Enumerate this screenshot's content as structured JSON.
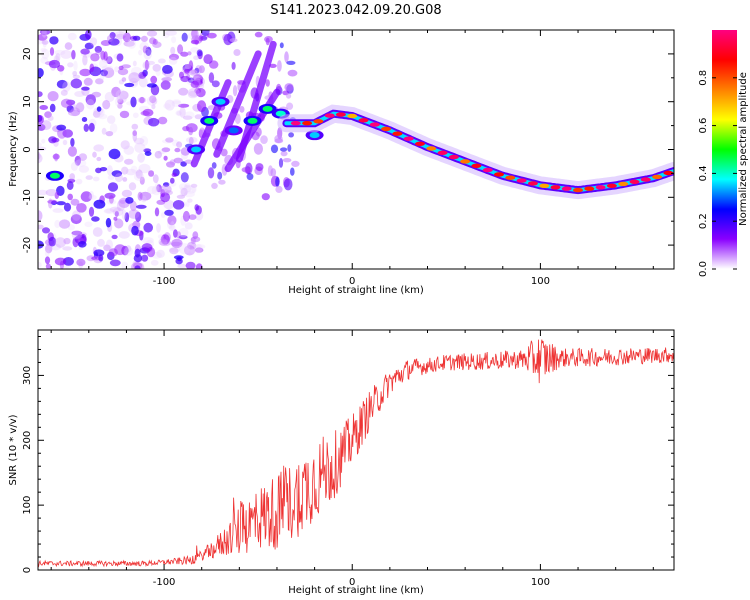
{
  "title": "S141.2023.042.09.20.G08",
  "chart_data": [
    {
      "type": "heatmap",
      "title": "S141.2023.042.09.20.G08",
      "xlabel": "Height of straight line (km)",
      "ylabel": "Frequency (Hz)",
      "xlim": [
        -167,
        171
      ],
      "ylim": [
        -25,
        25
      ],
      "x_ticks": [
        -100,
        0,
        100
      ],
      "y_ticks": [
        -20,
        -10,
        0,
        10,
        20
      ],
      "colorbar": {
        "label": "Normalized spectral amplitude",
        "range": [
          0,
          1
        ],
        "ticks": [
          "0.0",
          "0.2",
          "0.4",
          "0.6",
          "0.8"
        ],
        "colors": [
          "#ffffff",
          "#8a00ff",
          "#0000ff",
          "#00ffff",
          "#00ff00",
          "#ffff00",
          "#ff8000",
          "#ff0000",
          "#ff0080"
        ]
      },
      "ridge": {
        "x": [
          -35,
          -20,
          -10,
          0,
          20,
          40,
          60,
          80,
          100,
          120,
          140,
          160,
          171
        ],
        "y": [
          5.5,
          5.5,
          7.5,
          7,
          4,
          0.5,
          -2.5,
          -5.5,
          -7.5,
          -8.5,
          -7.5,
          -6,
          -4.5
        ]
      },
      "clusters": [
        {
          "x": -158,
          "y": -5.5,
          "amp": 0.45
        },
        {
          "x": -83,
          "y": 0,
          "amp": 0.35
        },
        {
          "x": -76,
          "y": 6,
          "amp": 0.45
        },
        {
          "x": -70,
          "y": 10,
          "amp": 0.35
        },
        {
          "x": -63,
          "y": 4,
          "amp": 0.3
        },
        {
          "x": -53,
          "y": 6,
          "amp": 0.45
        },
        {
          "x": -45,
          "y": 8.5,
          "amp": 0.45
        },
        {
          "x": -38,
          "y": 7.5,
          "amp": 0.4
        },
        {
          "x": -20,
          "y": 3,
          "amp": 0.35
        }
      ]
    },
    {
      "type": "line",
      "xlabel": "Height of straight line (km)",
      "ylabel": "SNR (10 * v/v)",
      "xlim": [
        -167,
        171
      ],
      "ylim": [
        0,
        370
      ],
      "x_ticks": [
        -100,
        0,
        100
      ],
      "y_ticks": [
        0,
        100,
        200,
        300
      ],
      "color": "#ee3333",
      "trend": {
        "x": [
          -167,
          -110,
          -85,
          -75,
          -60,
          -50,
          -40,
          -30,
          -20,
          -10,
          0,
          10,
          20,
          30,
          50,
          70,
          90,
          110,
          130,
          150,
          171
        ],
        "y": [
          10,
          10,
          15,
          30,
          60,
          80,
          90,
          110,
          140,
          160,
          200,
          250,
          290,
          310,
          320,
          322,
          325,
          327,
          328,
          330,
          332
        ]
      },
      "noise": {
        "x": [
          -167,
          -100,
          -80,
          -70,
          -60,
          -40,
          -20,
          0,
          20,
          40,
          90,
          100,
          110,
          171
        ],
        "amp": [
          4,
          4,
          8,
          20,
          40,
          60,
          65,
          40,
          20,
          12,
          15,
          40,
          15,
          12
        ]
      }
    }
  ]
}
